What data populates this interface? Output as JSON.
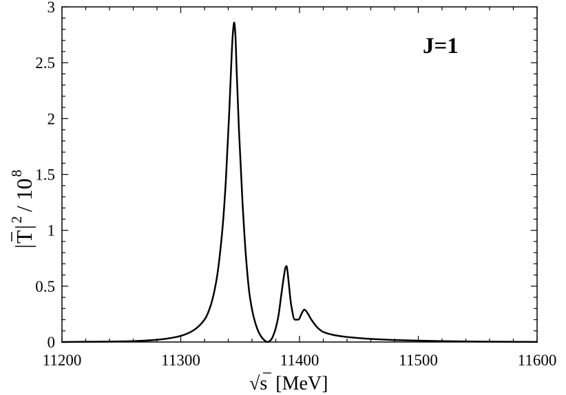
{
  "chart_data": {
    "type": "line",
    "title": "",
    "annotation": "J=1",
    "xlabel": {
      "radical": "√",
      "variable": "s",
      "unit": "[MeV]"
    },
    "ylabel": {
      "symbol": "T",
      "exponent": "2",
      "divider": "/ 10",
      "power": "8"
    },
    "xlim": [
      11200,
      11600
    ],
    "ylim": [
      0,
      3
    ],
    "x_ticks": [
      "11200",
      "11300",
      "11400",
      "11500",
      "11600"
    ],
    "y_ticks": [
      "0",
      "0.5",
      "1",
      "1.5",
      "2",
      "2.5",
      "3"
    ],
    "grid": false,
    "legend": "none",
    "line_color": "#000000",
    "series": [
      {
        "x": [
          11200,
          11220,
          11240,
          11260,
          11280,
          11290,
          11300,
          11310,
          11320,
          11325,
          11330,
          11335,
          11338,
          11341,
          11343,
          11344,
          11345,
          11346,
          11347,
          11349,
          11352,
          11355,
          11358,
          11362,
          11366,
          11370,
          11373,
          11376,
          11379,
          11382,
          11385,
          11387,
          11388,
          11389,
          11390,
          11391,
          11393,
          11396,
          11399,
          11402,
          11404,
          11406,
          11410,
          11415,
          11420,
          11430,
          11440,
          11460,
          11480,
          11500,
          11520,
          11550,
          11600
        ],
        "y": [
          0.0,
          0.002,
          0.004,
          0.008,
          0.02,
          0.033,
          0.055,
          0.1,
          0.2,
          0.32,
          0.55,
          1.0,
          1.45,
          2.1,
          2.6,
          2.78,
          2.86,
          2.75,
          2.45,
          1.9,
          1.25,
          0.75,
          0.42,
          0.2,
          0.08,
          0.02,
          0.0,
          0.02,
          0.09,
          0.22,
          0.45,
          0.6,
          0.66,
          0.68,
          0.62,
          0.52,
          0.33,
          0.2,
          0.2,
          0.26,
          0.29,
          0.27,
          0.2,
          0.13,
          0.09,
          0.06,
          0.045,
          0.028,
          0.018,
          0.012,
          0.008,
          0.004,
          0.001
        ]
      }
    ]
  }
}
